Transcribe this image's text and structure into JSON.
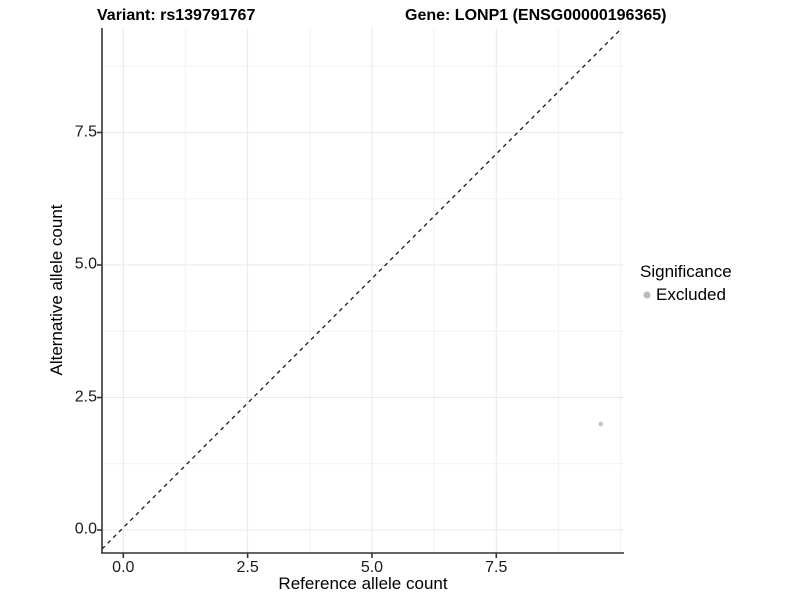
{
  "chart_data": {
    "type": "scatter",
    "titles": {
      "variant": "Variant: rs139791767",
      "gene": "Gene: LONP1 (ENSG00000196365)"
    },
    "xlabel": "Reference allele count",
    "ylabel": "Alternative allele count",
    "x_ticks": {
      "values": [
        0,
        2.5,
        5,
        7.5
      ],
      "labels": [
        "0.0",
        "2.5",
        "5.0",
        "7.5"
      ]
    },
    "y_ticks": {
      "values": [
        0,
        2.5,
        5,
        7.5
      ],
      "labels": [
        "0.0",
        "2.5",
        "5.0",
        "7.5"
      ]
    },
    "x_minor": [
      1.25,
      3.75,
      6.25,
      8.75,
      10.0
    ],
    "y_minor": [
      1.25,
      3.75,
      6.25,
      8.75
    ],
    "xlim": [
      -0.45,
      10.1
    ],
    "ylim": [
      -0.45,
      9.5
    ],
    "grid": {
      "major": true,
      "minor": true,
      "background": "#ffffff"
    },
    "reference_line": {
      "type": "identity",
      "slope": 1,
      "intercept": 0,
      "style": "dashed",
      "color": "#1a1a1a"
    },
    "series": [
      {
        "name": "Excluded",
        "color": "#c4c4c4",
        "points": [
          [
            9.6,
            2.0
          ]
        ]
      }
    ],
    "legend": {
      "title": "Significance",
      "position": "right",
      "items": [
        {
          "label": "Excluded",
          "color": "#bcbcbc"
        }
      ]
    },
    "colors": {
      "grid_major": "#e8e8e8",
      "grid_minor": "#f2f2f2",
      "axis_line": "#333333",
      "text": "#000000"
    }
  }
}
